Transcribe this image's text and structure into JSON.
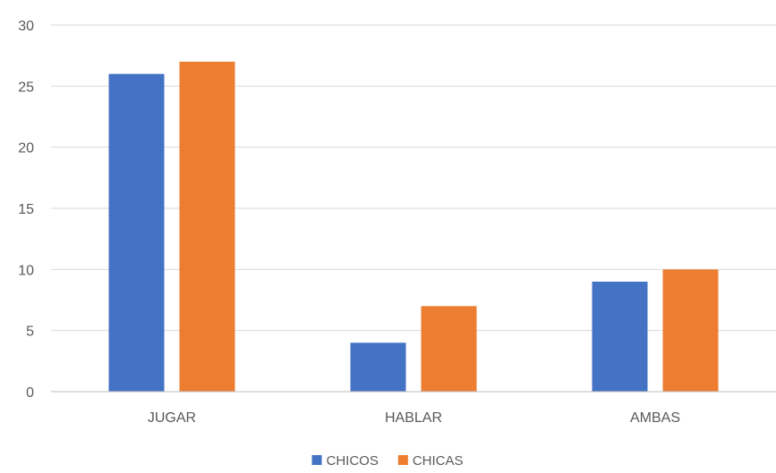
{
  "chart_data": {
    "type": "bar",
    "categories": [
      "JUGAR",
      "HABLAR",
      "AMBAS"
    ],
    "series": [
      {
        "name": "CHICOS",
        "values": [
          26,
          4,
          9
        ],
        "color": "#4472C4"
      },
      {
        "name": "CHICAS",
        "values": [
          27,
          7,
          10
        ],
        "color": "#ED7D31"
      }
    ],
    "ylim": [
      0,
      30
    ],
    "yticks": [
      0,
      5,
      10,
      15,
      20,
      25,
      30
    ],
    "grid": true,
    "legend": "bottom",
    "title": "",
    "xlabel": "",
    "ylabel": ""
  }
}
